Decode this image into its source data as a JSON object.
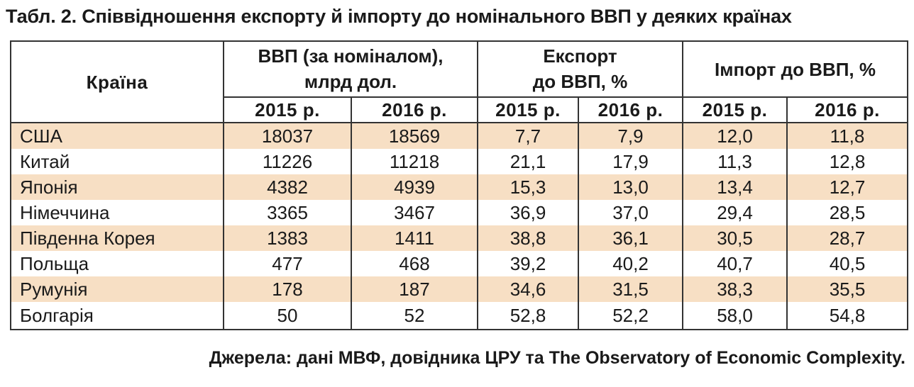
{
  "title": "Табл. 2. Співвідношення експорту й імпорту до номінального ВВП у деяких країнах",
  "header": {
    "country": "Країна",
    "gdp_line1": "ВВП (за номіналом),",
    "gdp_line2": "млрд дол.",
    "export_line1": "Експорт",
    "export_line2": "до ВВП, %",
    "import": "Імпорт до ВВП, %",
    "years": [
      "2015 р.",
      "2016 р.",
      "2015 р.",
      "2016 р.",
      "2015 р.",
      "2016 р."
    ]
  },
  "rows": [
    {
      "country": "США",
      "gdp2015": "18037",
      "gdp2016": "18569",
      "exp2015": "7,7",
      "exp2016": "7,9",
      "imp2015": "12,0",
      "imp2016": "11,8"
    },
    {
      "country": "Китай",
      "gdp2015": "11226",
      "gdp2016": "11218",
      "exp2015": "21,1",
      "exp2016": "17,9",
      "imp2015": "11,3",
      "imp2016": "12,8"
    },
    {
      "country": "Японія",
      "gdp2015": "4382",
      "gdp2016": "4939",
      "exp2015": "15,3",
      "exp2016": "13,0",
      "imp2015": "13,4",
      "imp2016": "12,7"
    },
    {
      "country": "Німеччина",
      "gdp2015": "3365",
      "gdp2016": "3467",
      "exp2015": "36,9",
      "exp2016": "37,0",
      "imp2015": "29,4",
      "imp2016": "28,5"
    },
    {
      "country": "Південна Корея",
      "gdp2015": "1383",
      "gdp2016": "1411",
      "exp2015": "38,8",
      "exp2016": "36,1",
      "imp2015": "30,5",
      "imp2016": "28,7"
    },
    {
      "country": "Польща",
      "gdp2015": "477",
      "gdp2016": "468",
      "exp2015": "39,2",
      "exp2016": "40,2",
      "imp2015": "40,7",
      "imp2016": "40,5"
    },
    {
      "country": "Румунія",
      "gdp2015": "178",
      "gdp2016": "187",
      "exp2015": "34,6",
      "exp2016": "31,5",
      "imp2015": "38,3",
      "imp2016": "35,5"
    },
    {
      "country": "Болгарія",
      "gdp2015": "50",
      "gdp2016": "52",
      "exp2015": "52,8",
      "exp2016": "52,2",
      "imp2015": "58,0",
      "imp2016": "54,8"
    }
  ],
  "source": "Джерела: дані МВФ, довідника ЦРУ та The Observatory of Economic Complexity.",
  "colors": {
    "row_shade": "#f7dfc4",
    "border": "#333333",
    "text": "#1a1a1a"
  }
}
